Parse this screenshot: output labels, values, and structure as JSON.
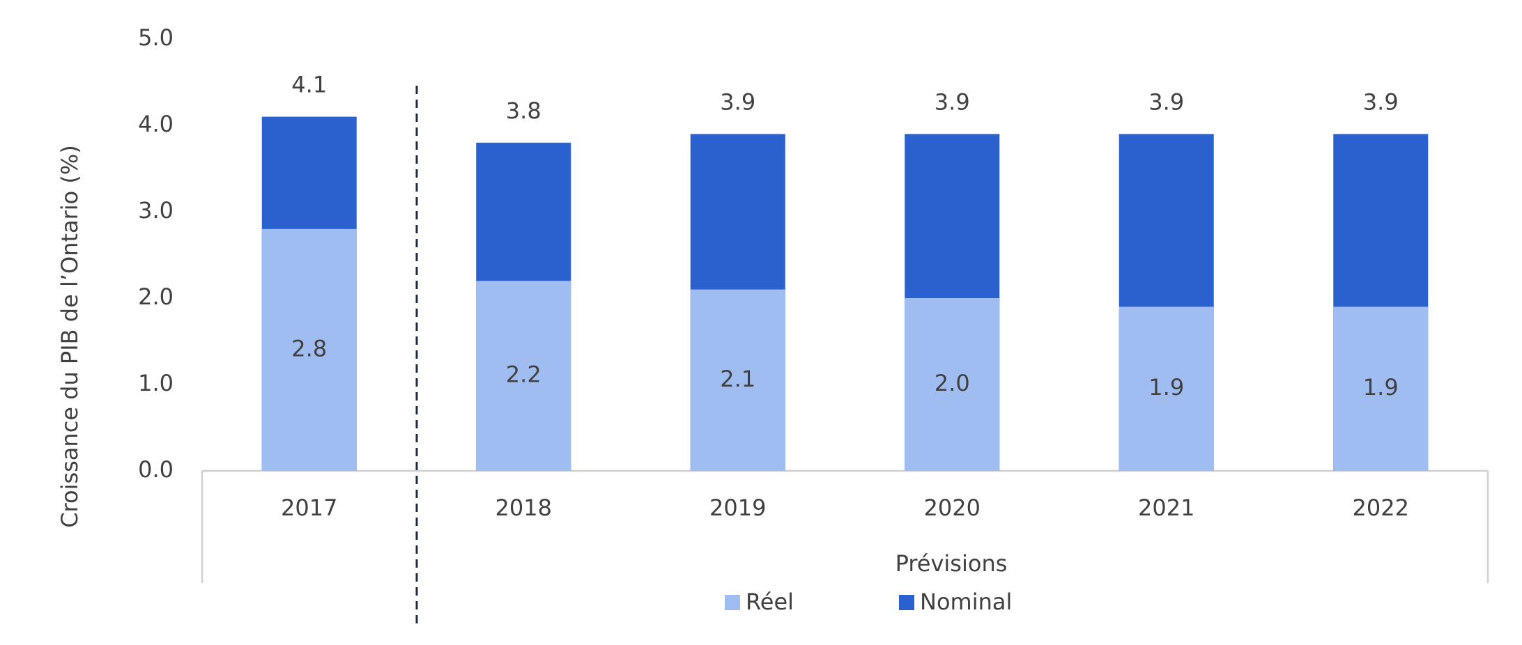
{
  "chart_data": {
    "type": "bar",
    "categories": [
      "2017",
      "2018",
      "2019",
      "2020",
      "2021",
      "2022"
    ],
    "series": [
      {
        "name": "Réel",
        "color": "#a0bdf2",
        "values": [
          2.8,
          2.2,
          2.1,
          2.0,
          1.9,
          1.9
        ],
        "value_labels": [
          "2.8",
          "2.2",
          "2.1",
          "2.0",
          "1.9",
          "1.9"
        ]
      },
      {
        "name": "Nominal",
        "color": "#2b60cf",
        "values": [
          4.1,
          3.8,
          3.9,
          3.9,
          3.9,
          3.9
        ]
      }
    ],
    "y_label": "Croissance du PIB de l’Ontario (%)",
    "annotation": "Prévisions",
    "ylim": [
      0,
      5
    ],
    "yticks": [
      {
        "value": 0,
        "label": "0.0"
      },
      {
        "value": 1,
        "label": "1.0"
      },
      {
        "value": 2,
        "label": "2.0"
      },
      {
        "value": 3,
        "label": "3.0"
      },
      {
        "value": 4,
        "label": "4.0"
      },
      {
        "value": 5,
        "label": "5.0"
      }
    ],
    "grid": false
  }
}
